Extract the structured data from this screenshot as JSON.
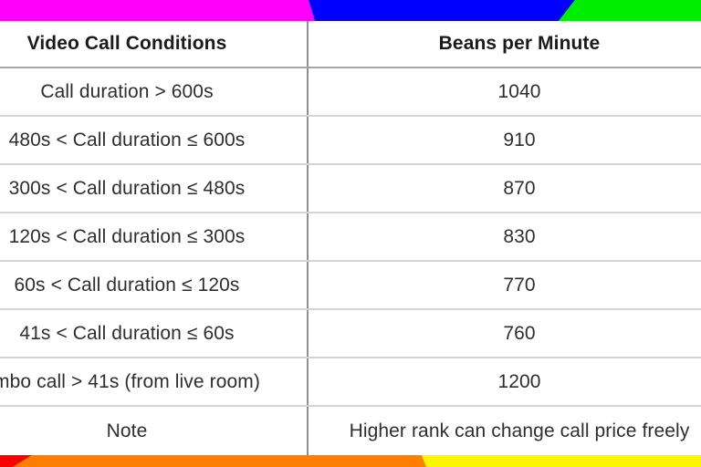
{
  "table": {
    "columns": [
      "Video Call Conditions",
      "Beans per Minute"
    ],
    "rows": [
      {
        "condition": "Call duration > 600s",
        "beans": "1040"
      },
      {
        "condition": "480s < Call duration ≤ 600s",
        "beans": "910"
      },
      {
        "condition": "300s < Call duration ≤ 480s",
        "beans": "870"
      },
      {
        "condition": "120s < Call duration ≤ 300s",
        "beans": "830"
      },
      {
        "condition": "60s < Call duration ≤ 120s",
        "beans": "770"
      },
      {
        "condition": "41s < Call duration ≤ 60s",
        "beans": "760"
      },
      {
        "condition": "mbo call > 41s (from live room)",
        "beans": "1200"
      },
      {
        "condition": "Note",
        "beans": "Higher rank can change call price freely"
      }
    ]
  },
  "decor": {
    "top_bar": {
      "magenta": "#ff00fa",
      "blue": "#0000ff",
      "green": "#00ee00"
    },
    "bottom_bar": {
      "red": "#fa0000",
      "orange": "#ff7e00",
      "yellow": "#fdf500"
    }
  }
}
